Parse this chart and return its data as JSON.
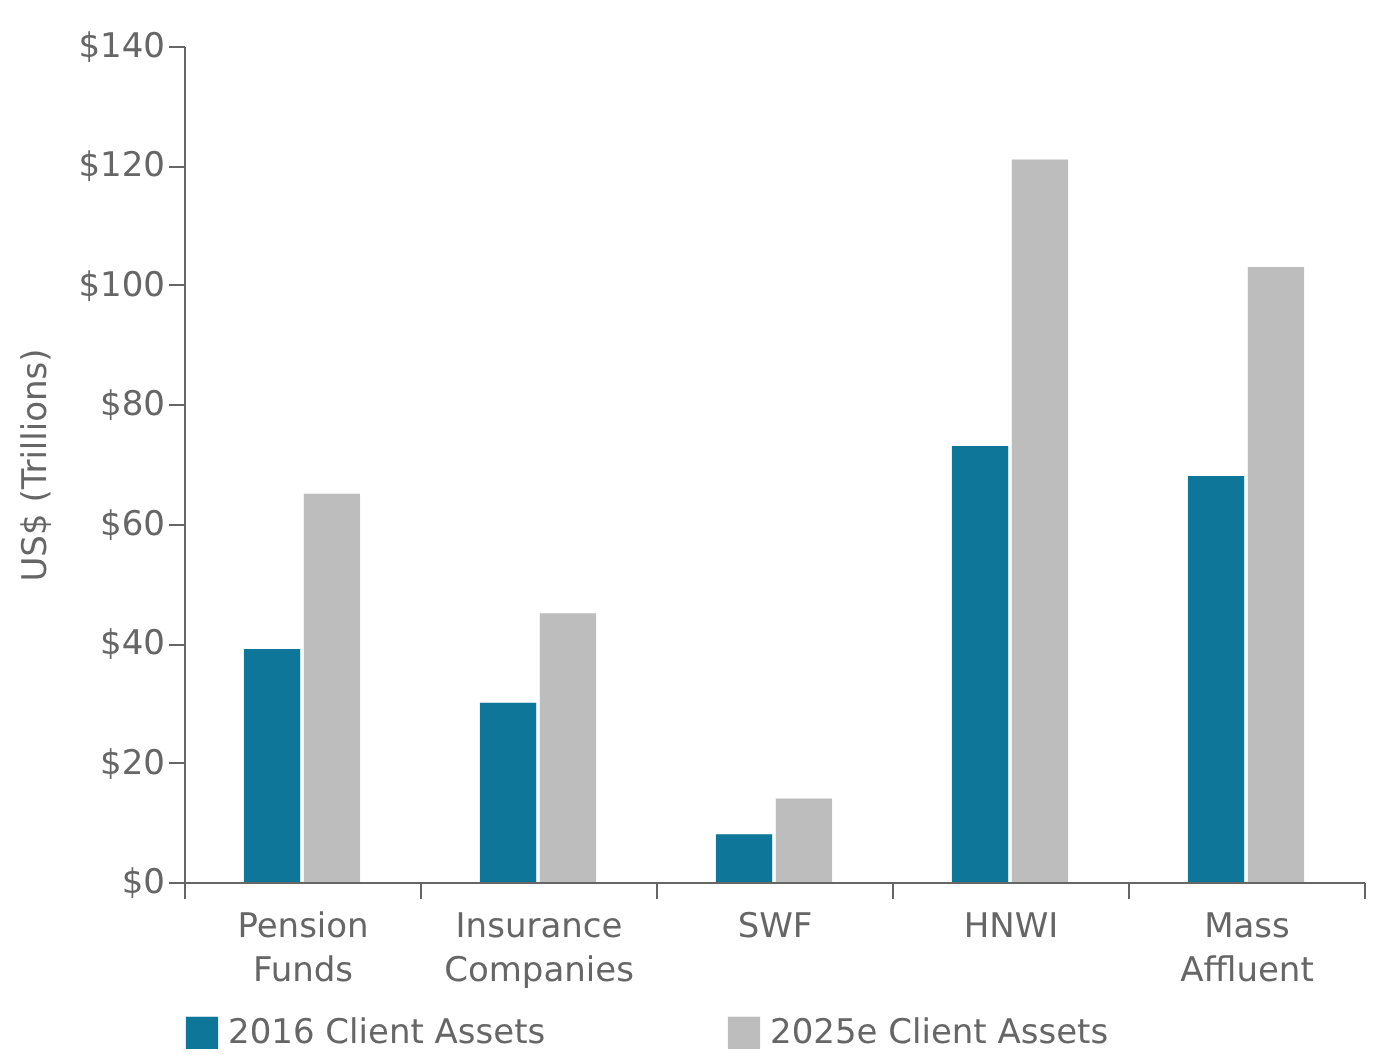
{
  "chart_data": {
    "type": "bar",
    "ylabel": "US$ (Trillions)",
    "categories": [
      "Pension Funds",
      "Insurance Companies",
      "SWF",
      "HNWI",
      "Mass Affluent"
    ],
    "series": [
      {
        "name": "2016 Client Assets",
        "color": "#0e7799",
        "values": [
          39,
          30,
          8,
          73,
          68
        ]
      },
      {
        "name": "2025e Client Assets",
        "color": "#bcbdbc",
        "values": [
          65,
          45,
          14,
          121,
          103
        ]
      }
    ],
    "ylim": [
      0,
      140
    ],
    "yticks": [
      {
        "value": 0,
        "label": "$0"
      },
      {
        "value": 20,
        "label": "$20"
      },
      {
        "value": 40,
        "label": "$40"
      },
      {
        "value": 60,
        "label": "$60"
      },
      {
        "value": 80,
        "label": "$80"
      },
      {
        "value": 100,
        "label": "$100"
      },
      {
        "value": 120,
        "label": "$120"
      },
      {
        "value": 140,
        "label": "$140"
      }
    ],
    "grid": false,
    "legend": "bottom"
  }
}
